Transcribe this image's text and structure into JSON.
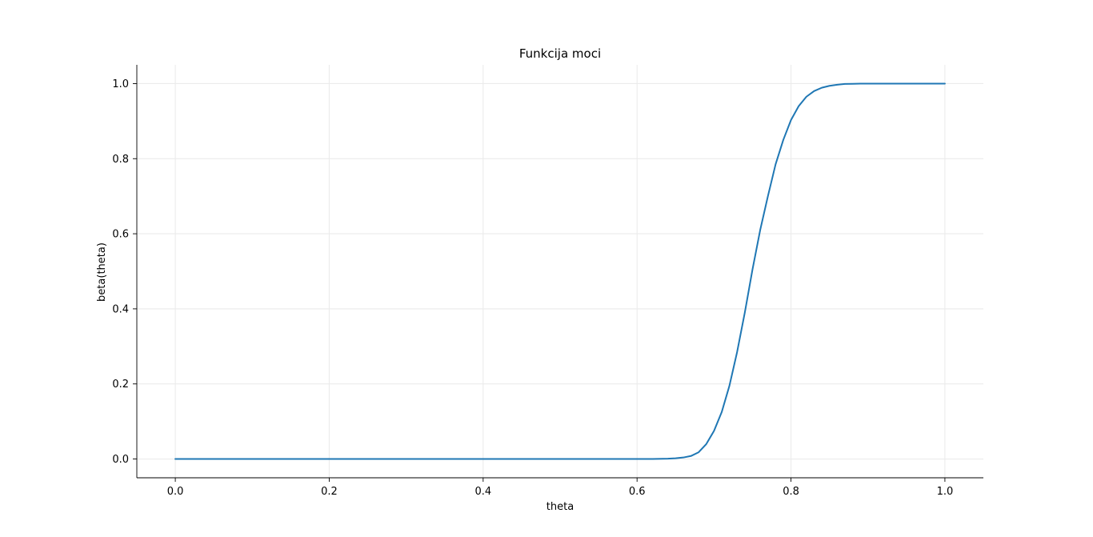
{
  "chart_data": {
    "type": "line",
    "title": "Funkcija moci",
    "xlabel": "theta",
    "ylabel": "beta(theta)",
    "xlim": [
      -0.05,
      1.05
    ],
    "ylim": [
      -0.05,
      1.05
    ],
    "xticks": [
      0.0,
      0.2,
      0.4,
      0.6,
      0.8,
      1.0
    ],
    "xtick_labels": [
      "0.0",
      "0.2",
      "0.4",
      "0.6",
      "0.8",
      "1.0"
    ],
    "yticks": [
      0.0,
      0.2,
      0.4,
      0.6,
      0.8,
      1.0
    ],
    "ytick_labels": [
      "0.0",
      "0.2",
      "0.4",
      "0.6",
      "0.8",
      "1.0"
    ],
    "grid": true,
    "legend": false,
    "series": [
      {
        "color": "#1f77b4",
        "x": [
          0.0,
          0.1,
          0.2,
          0.3,
          0.4,
          0.5,
          0.6,
          0.62,
          0.64,
          0.65,
          0.66,
          0.67,
          0.68,
          0.69,
          0.7,
          0.71,
          0.72,
          0.73,
          0.74,
          0.75,
          0.76,
          0.77,
          0.78,
          0.79,
          0.8,
          0.81,
          0.82,
          0.83,
          0.84,
          0.85,
          0.86,
          0.87,
          0.88,
          0.89,
          0.9,
          0.95,
          1.0
        ],
        "y": [
          0.0,
          0.0,
          0.0,
          0.0,
          0.0,
          0.0,
          0.0,
          0.0,
          0.001,
          0.002,
          0.004,
          0.008,
          0.018,
          0.04,
          0.075,
          0.125,
          0.195,
          0.285,
          0.39,
          0.505,
          0.61,
          0.7,
          0.785,
          0.85,
          0.903,
          0.94,
          0.965,
          0.98,
          0.989,
          0.994,
          0.997,
          0.999,
          0.9995,
          1.0,
          1.0,
          1.0,
          1.0
        ]
      }
    ]
  }
}
